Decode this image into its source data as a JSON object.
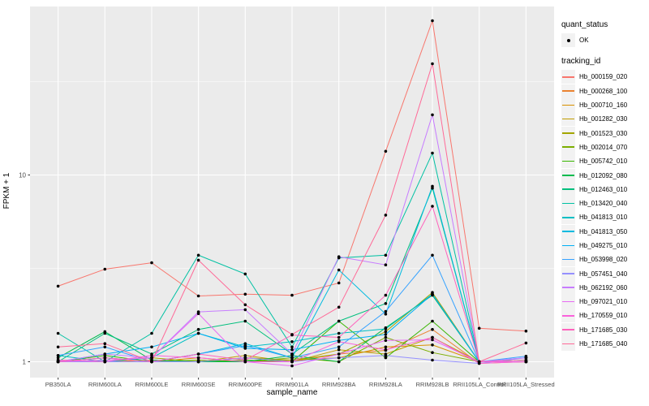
{
  "figure": {
    "background": "#FFFFFF",
    "panel_background": "#EBEBEB",
    "grid_color": "#FFFFFF",
    "axis_text_color": "#4D4D4D",
    "tick_color": "#333333",
    "point_color": "#000000"
  },
  "chart_data": {
    "type": "line",
    "title": "",
    "xlabel": "sample_name",
    "ylabel": "FPKM + 1",
    "y_scale": "log10",
    "y_ticks": [
      1,
      10
    ],
    "y_minor": [
      3.1623,
      31.623
    ],
    "ylim": [
      0.82,
      79.8
    ],
    "grid": true,
    "legend_position": "right",
    "categories": [
      "PB350LA",
      "RRIM600LA",
      "RRIM600LE",
      "RRIM600SE",
      "RRIM600PE",
      "RRIM901LA",
      "RRIM928BA",
      "RRIM928LA",
      "RRIM928LB",
      "RRII105LA_Control",
      "RRII105LA_Stressed"
    ],
    "legend": {
      "quant_status_title": "quant_status",
      "ok_label": "OK",
      "tracking_id_title": "tracking_id"
    },
    "series": [
      {
        "name": "Hb_000159_020",
        "color": "#F8766D",
        "values": [
          2.54,
          3.13,
          3.39,
          2.25,
          2.3,
          2.27,
          2.64,
          13.4,
          67.0,
          1.51,
          1.46
        ]
      },
      {
        "name": "Hb_000268_100",
        "color": "#EA8331",
        "values": [
          1.0,
          1.0,
          1.02,
          1.0,
          1.05,
          1.0,
          1.1,
          1.15,
          1.49,
          0.98,
          1.0
        ]
      },
      {
        "name": "Hb_000710_160",
        "color": "#D89000",
        "values": [
          1.02,
          1.0,
          1.0,
          1.05,
          1.0,
          1.02,
          1.05,
          1.2,
          1.23,
          1.0,
          1.0
        ]
      },
      {
        "name": "Hb_001282_030",
        "color": "#C09B00",
        "values": [
          1.0,
          1.05,
          1.0,
          1.0,
          1.08,
          1.0,
          1.16,
          1.1,
          1.35,
          1.0,
          1.02
        ]
      },
      {
        "name": "Hb_001523_030",
        "color": "#A3A500",
        "values": [
          1.0,
          1.0,
          1.05,
          1.0,
          1.05,
          1.02,
          1.1,
          1.45,
          2.35,
          1.0,
          1.0
        ]
      },
      {
        "name": "Hb_002014_070",
        "color": "#7CAE00",
        "values": [
          1.0,
          1.0,
          1.0,
          1.02,
          1.0,
          1.05,
          1.0,
          1.35,
          1.12,
          1.0,
          1.0
        ]
      },
      {
        "name": "Hb_005742_010",
        "color": "#39B600",
        "values": [
          1.0,
          1.08,
          1.0,
          1.0,
          1.02,
          1.0,
          1.65,
          1.05,
          1.65,
          1.0,
          1.0
        ]
      },
      {
        "name": "Hb_012092_080",
        "color": "#00BB4E",
        "values": [
          1.05,
          1.45,
          1.02,
          1.0,
          1.0,
          1.08,
          1.0,
          1.52,
          2.27,
          1.0,
          1.02
        ]
      },
      {
        "name": "Hb_012463_010",
        "color": "#00BF7D",
        "values": [
          1.0,
          1.42,
          1.1,
          1.49,
          1.65,
          1.1,
          1.65,
          2.05,
          8.5,
          1.0,
          1.0
        ]
      },
      {
        "name": "Hb_013420_040",
        "color": "#00C1A3",
        "values": [
          1.42,
          1.0,
          1.42,
          3.72,
          2.95,
          1.2,
          3.6,
          3.72,
          13.1,
          1.0,
          1.0
        ]
      },
      {
        "name": "Hb_041813_010",
        "color": "#00BFC4",
        "values": [
          1.08,
          1.0,
          1.05,
          1.42,
          1.2,
          1.28,
          1.42,
          1.5,
          2.3,
          1.0,
          1.0
        ]
      },
      {
        "name": "Hb_041813_050",
        "color": "#00BAE0",
        "values": [
          1.0,
          1.05,
          1.0,
          1.1,
          1.25,
          1.05,
          3.1,
          1.8,
          8.7,
          1.0,
          1.05
        ]
      },
      {
        "name": "Hb_049275_010",
        "color": "#00B0F6",
        "values": [
          1.0,
          1.1,
          1.2,
          1.42,
          1.18,
          1.16,
          1.3,
          1.4,
          2.3,
          1.0,
          1.0
        ]
      },
      {
        "name": "Hb_053998_020",
        "color": "#35A2FF",
        "values": [
          1.08,
          1.2,
          1.0,
          1.1,
          1.22,
          1.05,
          1.2,
          1.86,
          3.72,
          1.0,
          1.07
        ]
      },
      {
        "name": "Hb_057451_040",
        "color": "#9590FF",
        "values": [
          1.0,
          1.0,
          1.0,
          1.0,
          1.05,
          1.0,
          1.05,
          1.08,
          1.02,
          0.98,
          1.05
        ]
      },
      {
        "name": "Hb_062192_060",
        "color": "#C77CFF",
        "values": [
          1.0,
          1.1,
          1.05,
          1.85,
          1.9,
          1.1,
          3.65,
          3.3,
          21.0,
          1.0,
          1.05
        ]
      },
      {
        "name": "Hb_097021_010",
        "color": "#E76BF3",
        "values": [
          1.0,
          1.02,
          1.05,
          1.81,
          1.0,
          0.95,
          1.1,
          1.3,
          1.31,
          1.0,
          1.0
        ]
      },
      {
        "name": "Hb_170559_010",
        "color": "#FA62DB",
        "values": [
          1.02,
          1.0,
          1.08,
          1.05,
          1.0,
          1.0,
          1.28,
          1.16,
          1.35,
          0.98,
          1.0
        ]
      },
      {
        "name": "Hb_171685_030",
        "color": "#FF62BC",
        "values": [
          1.0,
          1.05,
          1.0,
          1.1,
          1.02,
          1.39,
          1.35,
          2.27,
          6.8,
          1.0,
          1.02
        ]
      },
      {
        "name": "Hb_171685_040",
        "color": "#FF6A98",
        "values": [
          1.2,
          1.25,
          1.0,
          3.5,
          2.02,
          1.4,
          1.96,
          6.1,
          39.4,
          1.0,
          1.26
        ]
      }
    ]
  }
}
